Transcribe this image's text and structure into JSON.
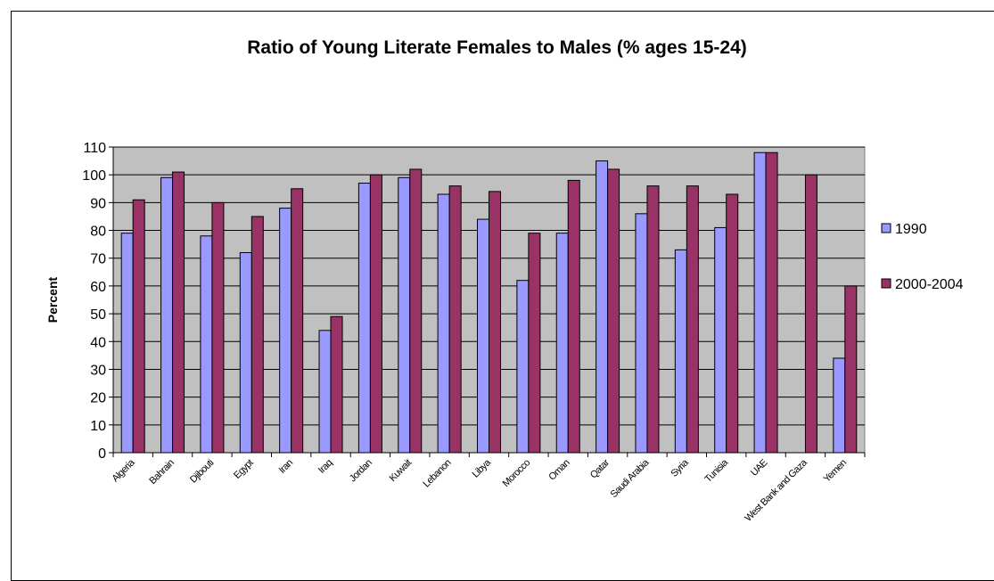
{
  "chart_data": {
    "type": "bar",
    "title": "Ratio of Young Literate Females to Males (% ages 15-24)",
    "ylabel": "Percent",
    "xlabel": "",
    "ylim": [
      0,
      110
    ],
    "yticks": [
      0,
      10,
      20,
      30,
      40,
      50,
      60,
      70,
      80,
      90,
      100,
      110
    ],
    "grid": true,
    "legend_position": "right",
    "categories": [
      "Algeria",
      "Bahrain",
      "Djibouti",
      "Egypt",
      "Iran",
      "Iraq",
      "Jordan",
      "Kuwait",
      "Lebanon",
      "Libya",
      "Morocco",
      "Oman",
      "Qatar",
      "Saudi Arabia",
      "Syria",
      "Tunisia",
      "UAE",
      "West Bank and Gaza",
      "Yemen"
    ],
    "series": [
      {
        "name": "1990",
        "color": "#9999ff",
        "values": [
          79,
          99,
          78,
          72,
          88,
          44,
          97,
          99,
          93,
          84,
          62,
          79,
          105,
          86,
          73,
          81,
          108,
          null,
          34
        ]
      },
      {
        "name": "2000-2004",
        "color": "#993366",
        "values": [
          91,
          101,
          90,
          85,
          95,
          49,
          100,
          102,
          96,
          94,
          79,
          98,
          102,
          96,
          96,
          93,
          108,
          100,
          60
        ]
      }
    ],
    "plot_background": "#c0c0c0"
  }
}
